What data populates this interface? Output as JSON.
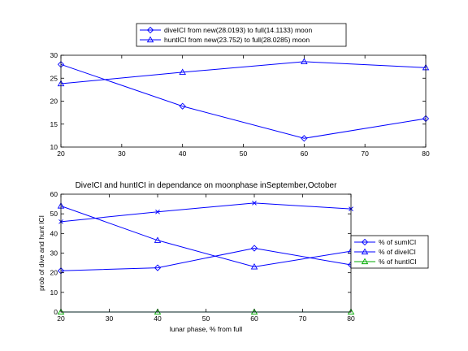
{
  "chart_data": [
    {
      "type": "line",
      "title": "",
      "xlabel": "",
      "ylabel": "",
      "xlim": [
        20,
        80
      ],
      "ylim": [
        10,
        30
      ],
      "xticks": [
        20,
        30,
        40,
        50,
        60,
        70,
        80
      ],
      "yticks": [
        10,
        15,
        20,
        25,
        30
      ],
      "grid": false,
      "legend_position": "top-center",
      "series": [
        {
          "name": "diveICI from new(28.0193) to full(14.1133) moon",
          "color": "#0000ff",
          "marker": "diamond",
          "x": [
            20,
            40,
            60,
            80
          ],
          "y": [
            28.0,
            18.9,
            11.9,
            16.2
          ]
        },
        {
          "name": "huntICI from new(23.752) to full(28.0285) moon",
          "color": "#0000ff",
          "marker": "triangle",
          "x": [
            20,
            40,
            60,
            80
          ],
          "y": [
            23.8,
            26.3,
            28.6,
            27.3
          ]
        }
      ]
    },
    {
      "type": "line",
      "title": "DiveICI and huntICI in dependance on moonphase inSeptember,October",
      "xlabel": "lunar phase, % from full",
      "ylabel": "prob of dive and hunt ICI",
      "xlim": [
        20,
        80
      ],
      "ylim": [
        0,
        60
      ],
      "xticks": [
        20,
        30,
        40,
        50,
        60,
        70,
        80
      ],
      "yticks": [
        0,
        10,
        20,
        30,
        40,
        50,
        60
      ],
      "grid": false,
      "legend_position": "right",
      "series": [
        {
          "name": "% of sumICI",
          "color": "#0000ff",
          "marker": "diamond",
          "x": [
            20,
            40,
            60,
            80
          ],
          "y": [
            21,
            22.5,
            32.5,
            24
          ]
        },
        {
          "name": "% of diveICI",
          "color": "#0000ff",
          "marker": "triangle",
          "x": [
            20,
            40,
            60,
            80
          ],
          "y": [
            54,
            36.5,
            23,
            31
          ]
        },
        {
          "name": "% of huntICI",
          "color": "#00aa00",
          "marker": "triangle",
          "x": [
            20,
            40,
            60,
            80
          ],
          "y": [
            0,
            0,
            0,
            0
          ]
        },
        {
          "color": "#0000ff",
          "marker": "x",
          "x": [
            20,
            40,
            60,
            80
          ],
          "y": [
            46,
            51,
            55.5,
            52.5
          ]
        },
        {
          "color": "#00aaaa",
          "marker": "none",
          "x": [
            20,
            40,
            60,
            80
          ],
          "y": [
            0,
            0,
            0,
            0
          ]
        }
      ]
    }
  ]
}
